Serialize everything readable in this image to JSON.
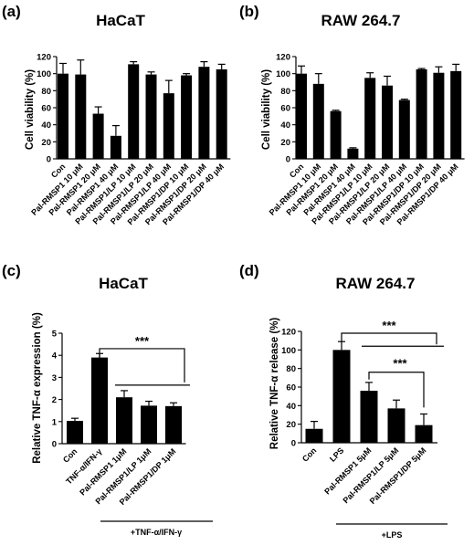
{
  "chart_data": [
    {
      "panel": "(a)",
      "type": "bar",
      "title": "HaCaT",
      "ylabel": "Cell viability (%)",
      "ylim": [
        0,
        120
      ],
      "yticks": [
        0,
        20,
        40,
        60,
        80,
        100,
        120
      ],
      "categories": [
        "Con",
        "Pal-RMSP1 10 μM",
        "Pal-RMSP1 20 μM",
        "Pal-RMSP1 40 μM",
        "Pal-RMSP1/LP 10 μM",
        "Pal-RMSP1/LP 20 μM",
        "Pal-RMSP1/LP 40 μM",
        "Pal-RMSP1/DP 10 μM",
        "Pal-RMSP1/DP 20 μM",
        "Pal-RMSP1/DP 40 μM"
      ],
      "values": [
        100,
        99,
        53,
        27,
        111,
        99,
        77,
        98,
        108,
        105
      ],
      "errors": [
        12,
        17,
        8,
        12,
        3,
        3,
        15,
        2,
        6,
        6
      ]
    },
    {
      "panel": "(b)",
      "type": "bar",
      "title": "RAW 264.7",
      "ylabel": "Cell viability (%)",
      "ylim": [
        0,
        120
      ],
      "yticks": [
        0,
        20,
        40,
        60,
        80,
        100,
        120
      ],
      "categories": [
        "Con",
        "Pal-RMSP1 10 μM",
        "Pal-RMSP1 20 μM",
        "Pal-RMSP1 40 μM",
        "Pal-RMSP1/LP 10 μM",
        "Pal-RMSP1/LP 20 μM",
        "Pal-RMSP1/LP 40 μM",
        "Pal-RMSP1/DP 10 μM",
        "Pal-RMSP1/DP 20 μM",
        "Pal-RMSP1/DP 40 μM"
      ],
      "values": [
        100,
        88,
        56,
        12,
        95,
        86,
        69,
        105,
        101,
        103
      ],
      "errors": [
        9,
        12,
        1,
        1,
        6,
        11,
        1,
        1,
        7,
        8
      ]
    },
    {
      "panel": "(c)",
      "type": "bar",
      "title": "HaCaT",
      "ylabel": "Relative TNF-α expression (%)",
      "ylim": [
        0,
        5
      ],
      "yticks": [
        0,
        1,
        2,
        3,
        4,
        5
      ],
      "categories": [
        "Con",
        "TNF-α/IFN-γ",
        "Pal-RMSP1 1μM",
        "Pal-RMSP1/LP 1μM",
        "Pal-RMSP1/DP 1μM"
      ],
      "values": [
        1.03,
        3.9,
        2.1,
        1.72,
        1.7
      ],
      "errors": [
        0.12,
        0.18,
        0.3,
        0.2,
        0.15
      ],
      "significance": [
        {
          "label": "***"
        }
      ],
      "group_label": "+TNF-α/IFN-γ"
    },
    {
      "panel": "(d)",
      "type": "bar",
      "title": "RAW 264.7",
      "ylabel": "Relative TNF-α release (%)",
      "ylim": [
        0,
        120
      ],
      "yticks": [
        0,
        20,
        40,
        60,
        80,
        100,
        120
      ],
      "categories": [
        "Con",
        "LPS",
        "Pal-RMSP1 5μM",
        "Pal-RMSP1/LP 5μM",
        "Pal-RMSP1/DP 5μM"
      ],
      "values": [
        15,
        100,
        56,
        37,
        19
      ],
      "errors": [
        8,
        9,
        9,
        9,
        12
      ],
      "significance": [
        {
          "label": "***"
        },
        {
          "label": "***"
        }
      ],
      "group_label": "+LPS"
    }
  ]
}
